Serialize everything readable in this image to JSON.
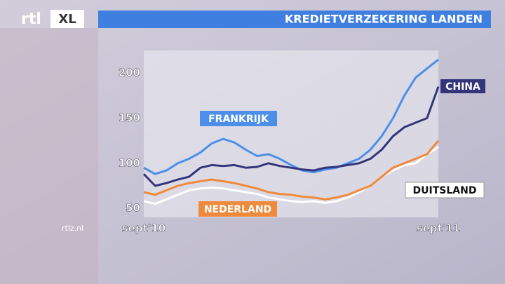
{
  "branding": {
    "logo": "rtl",
    "badge": "XL",
    "url": "rtlz.nl"
  },
  "chart_data": {
    "type": "line",
    "title": "KREDIETVERZEKERING LANDEN",
    "categories": [
      "sept'10",
      null,
      null,
      null,
      null,
      null,
      null,
      null,
      null,
      null,
      null,
      null,
      null,
      null,
      null,
      null,
      null,
      null,
      null,
      null,
      null,
      null,
      null,
      null,
      null,
      null,
      "sept'11"
    ],
    "series": [
      {
        "name": "FRANKRIJK",
        "color": "#4d8fe8",
        "values": [
          95,
          88,
          92,
          100,
          105,
          112,
          122,
          127,
          123,
          115,
          108,
          110,
          105,
          98,
          92,
          90,
          93,
          95,
          100,
          105,
          115,
          130,
          150,
          175,
          195,
          205,
          215
        ]
      },
      {
        "name": "CHINA",
        "color": "#34347a",
        "values": [
          88,
          75,
          78,
          82,
          85,
          95,
          98,
          97,
          98,
          95,
          96,
          100,
          97,
          95,
          93,
          92,
          95,
          96,
          98,
          100,
          105,
          115,
          130,
          140,
          145,
          150,
          185
        ]
      },
      {
        "name": "DUITSLAND",
        "color": "#ffffff",
        "values": [
          58,
          55,
          60,
          65,
          70,
          72,
          73,
          72,
          70,
          68,
          66,
          62,
          60,
          58,
          57,
          58,
          56,
          58,
          62,
          68,
          75,
          85,
          92,
          98,
          100,
          110,
          118
        ]
      },
      {
        "name": "NEDERLAND",
        "color": "#ee8a3c",
        "values": [
          68,
          65,
          70,
          75,
          78,
          80,
          82,
          80,
          78,
          75,
          72,
          68,
          66,
          65,
          63,
          62,
          60,
          62,
          65,
          70,
          75,
          85,
          95,
          100,
          105,
          110,
          125
        ]
      }
    ],
    "ylim": [
      40,
      225
    ],
    "yticks": [
      50,
      100,
      150,
      200
    ],
    "grid": false
  }
}
